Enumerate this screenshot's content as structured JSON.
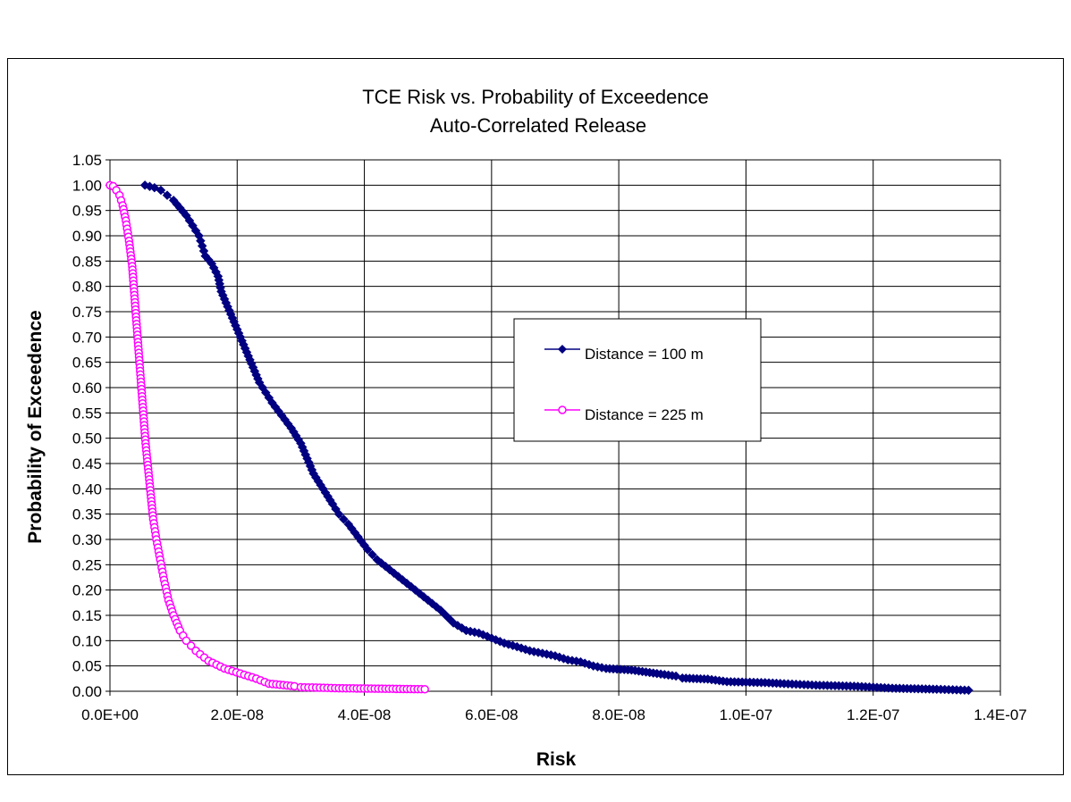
{
  "chart_data": {
    "type": "scatter",
    "title": "TCE Risk vs. Probability of Exceedence",
    "subtitle": "Auto-Correlated Release",
    "xlabel": "Risk",
    "ylabel": "Probability of Exceedence",
    "xlim": [
      0,
      1.4e-07
    ],
    "ylim": [
      0,
      1.05
    ],
    "xticks": [
      "0.0E+00",
      "2.0E-08",
      "4.0E-08",
      "6.0E-08",
      "8.0E-08",
      "1.0E-07",
      "1.2E-07",
      "1.4E-07"
    ],
    "yticks": [
      "0.00",
      "0.05",
      "0.10",
      "0.15",
      "0.20",
      "0.25",
      "0.30",
      "0.35",
      "0.40",
      "0.45",
      "0.50",
      "0.55",
      "0.60",
      "0.65",
      "0.70",
      "0.75",
      "0.80",
      "0.85",
      "0.90",
      "0.95",
      "1.00",
      "1.05"
    ],
    "grid": true,
    "legend_position": "center-right",
    "series": [
      {
        "name": "Distance = 100 m",
        "color": "#000080",
        "marker": "filled-diamond",
        "points": [
          [
            5.5e-09,
            1.0
          ],
          [
            7e-09,
            0.995
          ],
          [
            8e-09,
            0.99
          ],
          [
            9e-09,
            0.98
          ],
          [
            1e-08,
            0.97
          ],
          [
            1.1e-08,
            0.955
          ],
          [
            1.2e-08,
            0.94
          ],
          [
            1.3e-08,
            0.92
          ],
          [
            1.4e-08,
            0.9
          ],
          [
            1.45e-08,
            0.88
          ],
          [
            1.5e-08,
            0.86
          ],
          [
            1.6e-08,
            0.845
          ],
          [
            1.7e-08,
            0.82
          ],
          [
            1.75e-08,
            0.79
          ],
          [
            1.85e-08,
            0.76
          ],
          [
            1.95e-08,
            0.73
          ],
          [
            2.05e-08,
            0.7
          ],
          [
            2.15e-08,
            0.67
          ],
          [
            2.25e-08,
            0.64
          ],
          [
            2.35e-08,
            0.61
          ],
          [
            2.45e-08,
            0.59
          ],
          [
            2.55e-08,
            0.57
          ],
          [
            2.7e-08,
            0.545
          ],
          [
            2.85e-08,
            0.52
          ],
          [
            3e-08,
            0.49
          ],
          [
            3.1e-08,
            0.46
          ],
          [
            3.2e-08,
            0.43
          ],
          [
            3.35e-08,
            0.4
          ],
          [
            3.5e-08,
            0.37
          ],
          [
            3.6e-08,
            0.35
          ],
          [
            3.75e-08,
            0.33
          ],
          [
            3.9e-08,
            0.305
          ],
          [
            4.05e-08,
            0.28
          ],
          [
            4.2e-08,
            0.26
          ],
          [
            4.4e-08,
            0.24
          ],
          [
            4.6e-08,
            0.22
          ],
          [
            4.8e-08,
            0.2
          ],
          [
            5e-08,
            0.18
          ],
          [
            5.2e-08,
            0.16
          ],
          [
            5.4e-08,
            0.135
          ],
          [
            5.6e-08,
            0.12
          ],
          [
            5.8e-08,
            0.115
          ],
          [
            6e-08,
            0.105
          ],
          [
            6.2e-08,
            0.095
          ],
          [
            6.4e-08,
            0.088
          ],
          [
            6.6e-08,
            0.08
          ],
          [
            6.8e-08,
            0.075
          ],
          [
            7e-08,
            0.07
          ],
          [
            7.2e-08,
            0.062
          ],
          [
            7.4e-08,
            0.058
          ],
          [
            7.6e-08,
            0.05
          ],
          [
            7.8e-08,
            0.045
          ],
          [
            8.2e-08,
            0.042
          ],
          [
            8.6e-08,
            0.035
          ],
          [
            8.9e-08,
            0.03
          ],
          [
            9e-08,
            0.026
          ],
          [
            9.4e-08,
            0.024
          ],
          [
            9.7e-08,
            0.019
          ],
          [
            1.03e-07,
            0.017
          ],
          [
            1.06e-07,
            0.015
          ],
          [
            1.11e-07,
            0.012
          ],
          [
            1.17e-07,
            0.01
          ],
          [
            1.2e-07,
            0.008
          ],
          [
            1.23e-07,
            0.006
          ],
          [
            1.3e-07,
            0.004
          ],
          [
            1.35e-07,
            0.002
          ]
        ]
      },
      {
        "name": "Distance = 225 m",
        "color": "#FF00FF",
        "marker": "open-circle",
        "points": [
          [
            0,
            1.0
          ],
          [
            5e-10,
            0.998
          ],
          [
            1e-09,
            0.99
          ],
          [
            1.5e-09,
            0.98
          ],
          [
            2e-09,
            0.96
          ],
          [
            2.5e-09,
            0.93
          ],
          [
            3e-09,
            0.89
          ],
          [
            3.5e-09,
            0.84
          ],
          [
            3.8e-09,
            0.79
          ],
          [
            4.1e-09,
            0.74
          ],
          [
            4.4e-09,
            0.69
          ],
          [
            4.7e-09,
            0.64
          ],
          [
            5e-09,
            0.59
          ],
          [
            5.3e-09,
            0.54
          ],
          [
            5.6e-09,
            0.49
          ],
          [
            6e-09,
            0.44
          ],
          [
            6.4e-09,
            0.39
          ],
          [
            6.8e-09,
            0.34
          ],
          [
            7.3e-09,
            0.3
          ],
          [
            7.9e-09,
            0.26
          ],
          [
            8.5e-09,
            0.22
          ],
          [
            9.2e-09,
            0.18
          ],
          [
            1e-08,
            0.15
          ],
          [
            1.1e-08,
            0.12
          ],
          [
            1.2e-08,
            0.1
          ],
          [
            1.35e-08,
            0.08
          ],
          [
            1.55e-08,
            0.06
          ],
          [
            1.8e-08,
            0.045
          ],
          [
            2.05e-08,
            0.035
          ],
          [
            2.3e-08,
            0.025
          ],
          [
            2.5e-08,
            0.015
          ],
          [
            2.9e-08,
            0.01
          ],
          [
            3e-08,
            0.008
          ],
          [
            3.6e-08,
            0.006
          ],
          [
            4.95e-08,
            0.004
          ]
        ]
      }
    ]
  }
}
